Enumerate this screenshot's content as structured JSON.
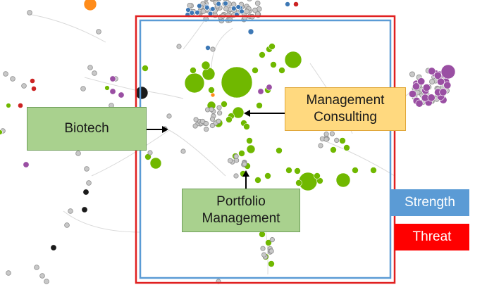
{
  "callouts": {
    "biotech": "Biotech",
    "management_consulting": "Management Consulting",
    "portfolio_management": "Portfolio Management"
  },
  "legend": {
    "strength": {
      "label": "Strength",
      "color": "#5b9bd5"
    },
    "threat": {
      "label": "Threat",
      "color": "#ff0000"
    }
  },
  "node_colors": {
    "green": "#70b800",
    "grey": "#c8c8c8",
    "blue": "#3d78b5",
    "purple": "#9a4fa3",
    "orange": "#ff8c1a",
    "red": "#cc2222",
    "black": "#1a1a1a"
  }
}
